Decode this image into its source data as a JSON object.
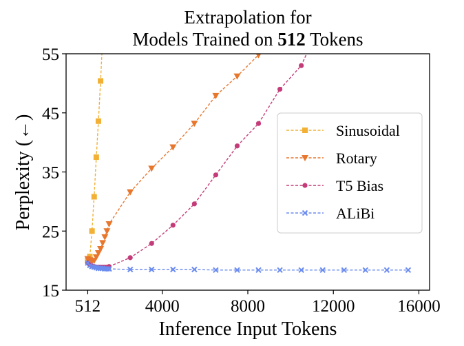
{
  "chart_data": {
    "type": "line",
    "title_line1": "Extrapolation for",
    "title_line2_prefix": "Models Trained on ",
    "title_line2_bold": "512",
    "title_line2_suffix": " Tokens",
    "xlabel": "Inference Input Tokens",
    "ylabel": "Perplexity (←)",
    "xlim": [
      -500,
      16500
    ],
    "ylim": [
      15,
      55
    ],
    "xticks": [
      512,
      4000,
      8000,
      12000,
      16000
    ],
    "xtick_labels": [
      "512",
      "4000",
      "8000",
      "12000",
      "16000"
    ],
    "yticks": [
      15,
      25,
      35,
      45,
      55
    ],
    "ytick_labels": [
      "15",
      "25",
      "35",
      "45",
      "55"
    ],
    "legend_position": "center-right",
    "series": [
      {
        "name": "Sinusoidal",
        "color": "#f2b134",
        "marker": "square",
        "x": [
          512,
          612,
          712,
          812,
          912,
          1012,
          1112,
          1212
        ],
        "y": [
          20.0,
          20.7,
          25.0,
          30.8,
          37.5,
          43.6,
          50.4,
          58.0
        ]
      },
      {
        "name": "Rotary",
        "color": "#e8772e",
        "marker": "triangle-down",
        "x": [
          512,
          612,
          712,
          812,
          912,
          1012,
          1112,
          1212,
          1312,
          1412,
          1512,
          2500,
          3500,
          4500,
          5500,
          6500,
          7500,
          8500,
          9000
        ],
        "y": [
          20.3,
          20.1,
          19.9,
          20.0,
          20.6,
          21.3,
          22.0,
          23.0,
          24.0,
          25.0,
          26.2,
          31.6,
          35.6,
          39.2,
          43.2,
          47.9,
          51.2,
          54.8,
          57.0
        ]
      },
      {
        "name": "T5 Bias",
        "color": "#c43b79",
        "marker": "circle",
        "x": [
          512,
          612,
          712,
          812,
          912,
          1012,
          1112,
          1212,
          1312,
          1412,
          1512,
          2500,
          3500,
          4500,
          5500,
          6500,
          7500,
          8500,
          9500,
          10500,
          11000
        ],
        "y": [
          19.6,
          19.3,
          19.1,
          19.0,
          18.9,
          18.9,
          18.9,
          18.9,
          18.9,
          18.9,
          19.0,
          20.5,
          22.9,
          26.0,
          29.6,
          34.5,
          39.4,
          43.2,
          49.0,
          53.0,
          57.0
        ]
      },
      {
        "name": "ALiBi",
        "color": "#6b8cef",
        "marker": "x",
        "x": [
          512,
          612,
          712,
          812,
          912,
          1012,
          1112,
          1212,
          1312,
          1412,
          1512,
          2500,
          3500,
          4500,
          5500,
          6500,
          7500,
          8500,
          9500,
          10500,
          11500,
          12500,
          13500,
          14500,
          15500
        ],
        "y": [
          19.6,
          19.2,
          19.0,
          18.9,
          18.8,
          18.7,
          18.7,
          18.7,
          18.6,
          18.6,
          18.6,
          18.5,
          18.5,
          18.5,
          18.5,
          18.4,
          18.4,
          18.4,
          18.4,
          18.4,
          18.4,
          18.4,
          18.4,
          18.4,
          18.4
        ]
      }
    ]
  }
}
